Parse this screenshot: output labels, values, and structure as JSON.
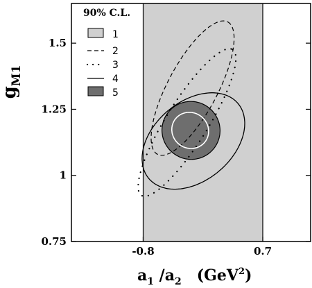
{
  "chart_data": {
    "type": "contour",
    "title": "",
    "xlabel": {
      "main": "a",
      "sub1": "1",
      "slash": " /a",
      "sub2": "2",
      "unit_open": "(GeV",
      "unit_sup": "2",
      "unit_close": ")"
    },
    "ylabel": {
      "main": "g",
      "accent": "~",
      "sub": "M1"
    },
    "xlim": [
      -1.7,
      1.3
    ],
    "ylim": [
      0.75,
      1.65
    ],
    "x_ticks": [
      {
        "value": -0.8,
        "label": "-0.8"
      },
      {
        "value": 0.7,
        "label": "0.7"
      }
    ],
    "y_ticks": [
      {
        "value": 0.75,
        "label": "0.75"
      },
      {
        "value": 1.0,
        "label": "1"
      },
      {
        "value": 1.25,
        "label": "1.25"
      },
      {
        "value": 1.5,
        "label": "1.5"
      }
    ],
    "legend": {
      "title": "90% C.L.",
      "placement": "top-left",
      "entries": [
        {
          "label": "1",
          "style": "light-gray-box"
        },
        {
          "label": "2",
          "style": "dashed"
        },
        {
          "label": "3",
          "style": "dotted"
        },
        {
          "label": "4",
          "style": "solid"
        },
        {
          "label": "5",
          "style": "dark-gray-box"
        }
      ]
    },
    "series": [
      {
        "label": "1",
        "shape": "band",
        "x_range": [
          -0.8,
          0.7
        ],
        "color": "#d0d0d0"
      },
      {
        "label": "2",
        "shape": "ellipse-partial",
        "center": [
          -0.18,
          1.33
        ],
        "semi_axes": [
          1.35,
          0.12
        ],
        "angle_deg": 62,
        "style": "dashed"
      },
      {
        "label": "3",
        "shape": "ellipse",
        "center": [
          -0.25,
          1.2
        ],
        "semi_axes": [
          1.55,
          0.1
        ],
        "angle_deg": 58,
        "style": "dotted"
      },
      {
        "label": "4",
        "shape": "ellipse",
        "center": [
          -0.17,
          1.13
        ],
        "semi_axes": [
          1.05,
          0.19
        ],
        "angle_deg": 40,
        "style": "solid"
      },
      {
        "label": "5",
        "shape": "ellipse",
        "center": [
          -0.2,
          1.17
        ],
        "semi_axes": [
          0.52,
          0.14
        ],
        "angle_deg": 55,
        "color": "#6e6e6e"
      },
      {
        "label": "",
        "shape": "ellipse",
        "center": [
          -0.21,
          1.17
        ],
        "semi_axes": [
          0.32,
          0.09
        ],
        "angle_deg": 55,
        "style": "solid-white"
      }
    ]
  }
}
